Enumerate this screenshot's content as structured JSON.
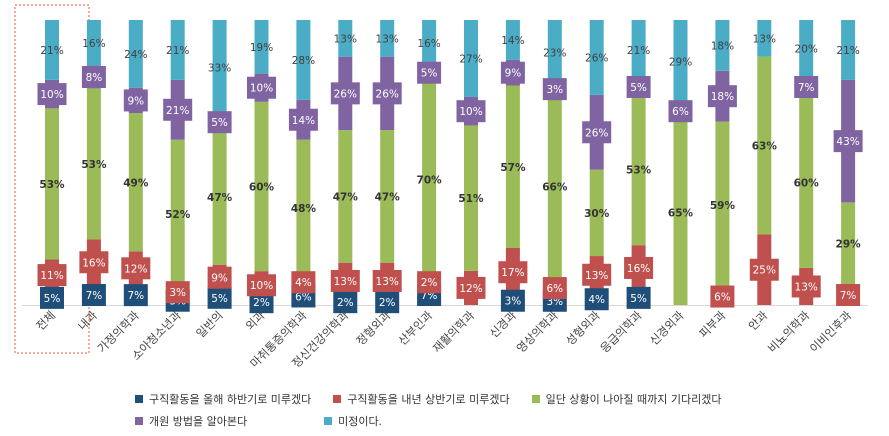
{
  "chart_data": {
    "type": "bar",
    "stacked": true,
    "percent_stacked": true,
    "categories": [
      "전체",
      "내과",
      "가정의학과",
      "소아청소년과",
      "일반의",
      "외과",
      "마취통증의학과",
      "정신건강의학과",
      "정형외과",
      "산부인과",
      "재활의학과",
      "신경과",
      "영상의학과",
      "성형외과",
      "응급의학과",
      "신경외과",
      "피부과",
      "안과",
      "비뇨의학과",
      "이비인후과"
    ],
    "highlight_category": "전체",
    "series": [
      {
        "name": "구직활동을 올해 하반기로 미루겠다",
        "color": "#1f4e79",
        "values": [
          5,
          7,
          7,
          3,
          5,
          2,
          6,
          2,
          2,
          7,
          0,
          3,
          3,
          4,
          5,
          0,
          0,
          0,
          0,
          0
        ],
        "labels": [
          "5%",
          "7%",
          "7%",
          "3%",
          "5%",
          "2%",
          "6%",
          "2%",
          "2%",
          "7%",
          "",
          "3%",
          "3%",
          "4%",
          "5%",
          "",
          "",
          "",
          "",
          ""
        ]
      },
      {
        "name": "구직활동을 내년 상반기로 미루겠다",
        "color": "#c0504d",
        "values": [
          11,
          16,
          12,
          3,
          9,
          10,
          4,
          13,
          13,
          2,
          12,
          17,
          6,
          13,
          16,
          0,
          6,
          25,
          13,
          7
        ],
        "labels": [
          "11%",
          "16%",
          "12%",
          "3%",
          "9%",
          "10%",
          "4%",
          "13%",
          "13%",
          "2%",
          "12%",
          "17%",
          "6%",
          "13%",
          "16%",
          "",
          "6%",
          "25%",
          "13%",
          "7%"
        ]
      },
      {
        "name": "일단 상황이 나아질 때까지 기다리겠다",
        "color": "#9bbb59",
        "values": [
          53,
          53,
          49,
          52,
          47,
          60,
          48,
          47,
          47,
          70,
          51,
          57,
          66,
          30,
          53,
          65,
          59,
          63,
          60,
          29
        ],
        "labels": [
          "53%",
          "53%",
          "49%",
          "52%",
          "47%",
          "60%",
          "48%",
          "47%",
          "47%",
          "70%",
          "51%",
          "57%",
          "66%",
          "30%",
          "53%",
          "65%",
          "59%",
          "63%",
          "60%",
          "29%"
        ]
      },
      {
        "name": "개원 방법을 알아본다",
        "color": "#8064a2",
        "values": [
          10,
          8,
          9,
          21,
          5,
          10,
          14,
          26,
          26,
          5,
          10,
          9,
          3,
          26,
          5,
          6,
          18,
          0,
          7,
          43
        ],
        "labels": [
          "10%",
          "8%",
          "9%",
          "21%",
          "5%",
          "10%",
          "14%",
          "26%",
          "26%",
          "5%",
          "10%",
          "9%",
          "3%",
          "26%",
          "5%",
          "6%",
          "18%",
          "",
          "7%",
          "43%"
        ]
      },
      {
        "name": "미정이다.",
        "color": "#4bacc6",
        "values": [
          21,
          16,
          24,
          21,
          33,
          19,
          28,
          13,
          13,
          16,
          27,
          14,
          23,
          26,
          21,
          29,
          18,
          13,
          20,
          21
        ],
        "labels": [
          "21%",
          "16%",
          "24%",
          "21%",
          "33%",
          "19%",
          "28%",
          "13%",
          "13%",
          "16%",
          "27%",
          "14%",
          "23%",
          "26%",
          "21%",
          "29%",
          "18%",
          "13%",
          "20%",
          "21%"
        ]
      }
    ],
    "ylim": [
      0,
      100
    ],
    "legend_position": "bottom"
  }
}
